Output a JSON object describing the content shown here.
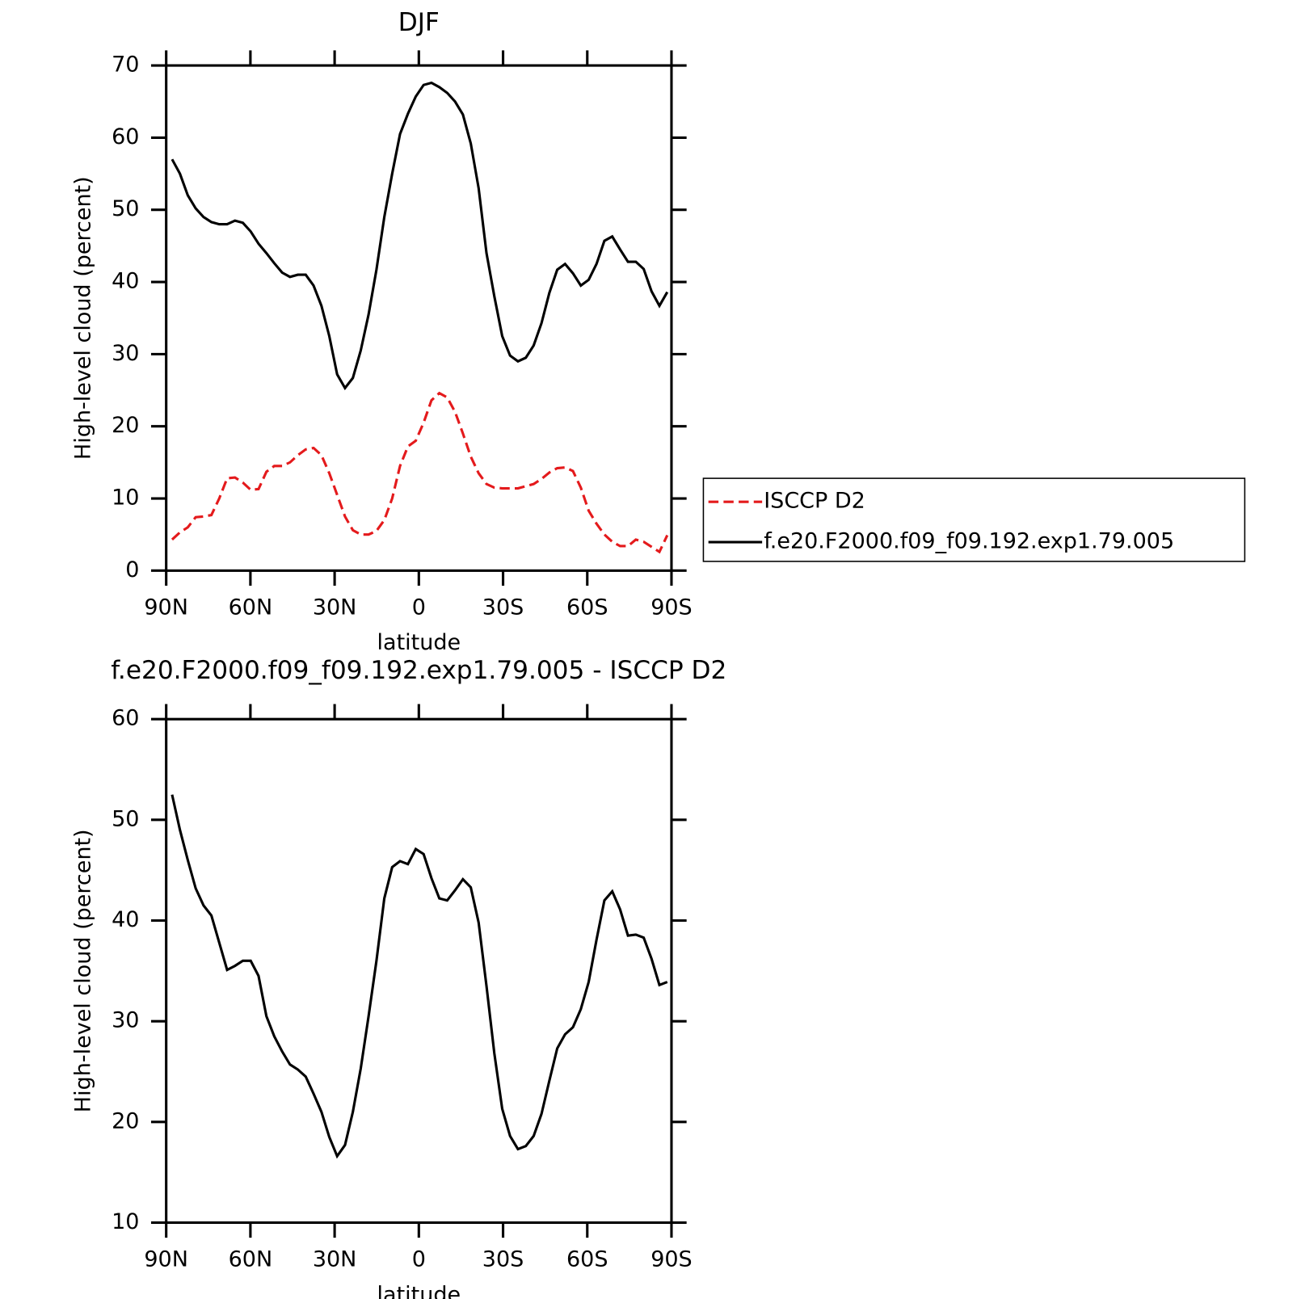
{
  "chart_data": [
    {
      "type": "line",
      "title": "DJF",
      "xlabel": "latitude",
      "ylabel": "High-level cloud (percent)",
      "x": [
        87.9,
        85.1,
        82.3,
        79.5,
        76.7,
        73.9,
        71.1,
        68.3,
        65.5,
        62.7,
        59.9,
        57.1,
        54.3,
        51.5,
        48.7,
        45.9,
        43.1,
        40.3,
        37.5,
        34.7,
        31.9,
        29.1,
        26.3,
        23.5,
        20.7,
        17.9,
        15.1,
        12.3,
        9.5,
        6.7,
        3.9,
        1.1,
        -1.7,
        -4.5,
        -7.3,
        -10.1,
        -12.9,
        -15.7,
        -18.5,
        -21.3,
        -24.1,
        -26.9,
        -29.7,
        -32.5,
        -35.3,
        -38.1,
        -40.9,
        -43.7,
        -46.5,
        -49.3,
        -52.1,
        -54.9,
        -57.7,
        -60.5,
        -63.3,
        -66.1,
        -68.9,
        -71.7,
        -74.5,
        -77.3,
        -80.1,
        -82.9,
        -85.7,
        -88.5
      ],
      "series": [
        {
          "name": "ISCCP D2",
          "color": "#e41a1c",
          "dashed": true,
          "values": [
            4.3,
            5.3,
            6,
            7.4,
            7.5,
            7.7,
            10,
            12.8,
            12.9,
            12.2,
            11.2,
            11.3,
            13.7,
            14.5,
            14.5,
            15,
            16,
            16.8,
            17,
            16,
            13.5,
            10.5,
            7.5,
            5.6,
            5,
            5,
            5.5,
            7,
            10,
            14.5,
            17.2,
            18,
            20.5,
            23.6,
            24.6,
            24,
            22,
            19,
            15.8,
            13.5,
            12,
            11.5,
            11.4,
            11.4,
            11.4,
            11.7,
            12,
            12.7,
            13.6,
            14.2,
            14.3,
            13.8,
            11.5,
            8.3,
            6.5,
            5,
            4,
            3.4,
            3.4,
            4.3,
            4,
            3.3,
            2.6,
            4.9
          ]
        },
        {
          "name": "f.e20.F2000.f09_f09.192.exp1.79.005",
          "color": "#000000",
          "dashed": false,
          "values": [
            57,
            55,
            52,
            50.2,
            49,
            48.3,
            48,
            48,
            48.5,
            48.2,
            47,
            45.3,
            44,
            42.6,
            41.3,
            40.7,
            41,
            41,
            39.5,
            36.7,
            32.5,
            27.2,
            25.3,
            26.7,
            30.5,
            35.5,
            41.7,
            49,
            55,
            60.5,
            63.3,
            65.7,
            67.3,
            67.6,
            67,
            66.2,
            65,
            63.2,
            59.2,
            53,
            44,
            38,
            32.5,
            29.8,
            29,
            29.5,
            31.2,
            34.3,
            38.5,
            41.7,
            42.5,
            41.2,
            39.5,
            40.3,
            42.5,
            45.7,
            46.3,
            44.5,
            42.8,
            42.8,
            41.8,
            38.7,
            36.7,
            38.6
          ]
        }
      ],
      "xlim": [
        90,
        -90
      ],
      "xticks": [
        {
          "value": 90,
          "label": "90N"
        },
        {
          "value": 60,
          "label": "60N"
        },
        {
          "value": 30,
          "label": "30N"
        },
        0,
        {
          "value": -30,
          "label": "30S"
        },
        {
          "value": -60,
          "label": "60S"
        },
        {
          "value": -90,
          "label": "90S"
        }
      ],
      "ylim": [
        0,
        70
      ],
      "yticks": [
        0,
        10,
        20,
        30,
        40,
        50,
        60,
        70
      ],
      "legend": "right"
    },
    {
      "type": "line",
      "title": "f.e20.F2000.f09_f09.192.exp1.79.005 - ISCCP D2",
      "xlabel": "latitude",
      "ylabel": "High-level cloud (percent)",
      "x": [
        87.9,
        85.1,
        82.3,
        79.5,
        76.7,
        73.9,
        71.1,
        68.3,
        65.5,
        62.7,
        59.9,
        57.1,
        54.3,
        51.5,
        48.7,
        45.9,
        43.1,
        40.3,
        37.5,
        34.7,
        31.9,
        29.1,
        26.3,
        23.5,
        20.7,
        17.9,
        15.1,
        12.3,
        9.5,
        6.7,
        3.9,
        1.1,
        -1.7,
        -4.5,
        -7.3,
        -10.1,
        -12.9,
        -15.7,
        -18.5,
        -21.3,
        -24.1,
        -26.9,
        -29.7,
        -32.5,
        -35.3,
        -38.1,
        -40.9,
        -43.7,
        -46.5,
        -49.3,
        -52.1,
        -54.9,
        -57.7,
        -60.5,
        -63.3,
        -66.1,
        -68.9,
        -71.7,
        -74.5,
        -77.3,
        -80.1,
        -82.9,
        -85.7,
        -88.5
      ],
      "series": [
        {
          "color": "#000000",
          "dashed": false,
          "values": [
            52.5,
            49,
            46,
            43.2,
            41.5,
            40.5,
            37.8,
            35.1,
            35.5,
            36,
            36,
            34.5,
            30.5,
            28.5,
            27,
            25.7,
            25.2,
            24.5,
            22.8,
            21,
            18.5,
            16.6,
            17.7,
            21,
            25.3,
            30.5,
            36,
            42.2,
            45.3,
            45.9,
            45.6,
            47.1,
            46.6,
            44.2,
            42.2,
            42,
            43,
            44.1,
            43.3,
            39.8,
            33.5,
            26.8,
            21.3,
            18.6,
            17.3,
            17.6,
            18.6,
            20.8,
            24.1,
            27.3,
            28.7,
            29.4,
            31.2,
            33.9,
            38.1,
            42,
            42.9,
            41.1,
            38.5,
            38.6,
            38.3,
            36.2,
            33.6,
            33.9
          ]
        }
      ],
      "xlim": [
        90,
        -90
      ],
      "xticks": [
        {
          "value": 90,
          "label": "90N"
        },
        {
          "value": 60,
          "label": "60N"
        },
        {
          "value": 30,
          "label": "30N"
        },
        0,
        {
          "value": -30,
          "label": "30S"
        },
        {
          "value": -60,
          "label": "60S"
        },
        {
          "value": -90,
          "label": "90S"
        }
      ],
      "ylim": [
        10,
        60
      ],
      "yticks": [
        10,
        20,
        30,
        40,
        50,
        60
      ]
    }
  ]
}
